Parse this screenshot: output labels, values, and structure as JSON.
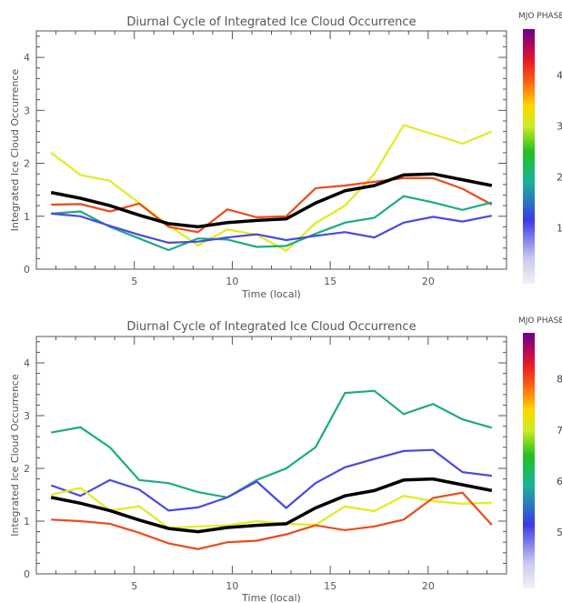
{
  "chart_data": [
    {
      "type": "line",
      "title": "Diurnal Cycle of Integrated Ice Cloud Occurrence",
      "xlabel": "Time (local)",
      "ylabel": "Integrated Ice Cloud Occurrence",
      "xlim": [
        0,
        24
      ],
      "ylim": [
        0,
        4.5
      ],
      "x_ticks": [
        5,
        10,
        15,
        20
      ],
      "y_ticks": [
        0,
        1,
        2,
        3,
        4
      ],
      "x": [
        0.75,
        2.25,
        3.75,
        5.25,
        6.75,
        8.25,
        9.75,
        11.25,
        12.75,
        14.25,
        15.75,
        17.25,
        18.75,
        20.25,
        21.75,
        23.25
      ],
      "colorbar": {
        "title": "MJO PHASE",
        "tick_labels": [
          "4",
          "3",
          "2",
          "1"
        ]
      },
      "series": [
        {
          "color": "#e0ec1c",
          "values": [
            2.2,
            1.78,
            1.67,
            1.25,
            0.83,
            0.45,
            0.75,
            0.65,
            0.35,
            0.87,
            1.2,
            1.8,
            2.72,
            2.55,
            2.37,
            2.6
          ]
        },
        {
          "color": "#ee4a18",
          "values": [
            1.22,
            1.23,
            1.09,
            1.24,
            0.8,
            0.7,
            1.13,
            0.98,
            1.0,
            1.53,
            1.58,
            1.65,
            1.72,
            1.72,
            1.52,
            1.22
          ]
        },
        {
          "color": "#1bab84",
          "values": [
            1.05,
            1.09,
            0.8,
            0.58,
            0.36,
            0.58,
            0.56,
            0.42,
            0.44,
            0.67,
            0.88,
            0.97,
            1.38,
            1.26,
            1.12,
            1.26
          ]
        },
        {
          "color": "#4b48e2",
          "values": [
            1.05,
            1.0,
            0.82,
            0.65,
            0.5,
            0.52,
            0.6,
            0.66,
            0.55,
            0.63,
            0.7,
            0.6,
            0.88,
            0.99,
            0.9,
            1.01
          ]
        },
        {
          "color": "#000000",
          "values": [
            1.45,
            1.34,
            1.2,
            1.02,
            0.86,
            0.8,
            0.88,
            0.92,
            0.95,
            1.25,
            1.48,
            1.58,
            1.78,
            1.8,
            1.69,
            1.58
          ]
        }
      ]
    },
    {
      "type": "line",
      "title": "Diurnal Cycle of Integrated Ice Cloud Occurrence",
      "xlabel": "Time (local)",
      "ylabel": "Integrated Ice Cloud Occurrence",
      "xlim": [
        0,
        24
      ],
      "ylim": [
        0,
        4.5
      ],
      "x_ticks": [
        5,
        10,
        15,
        20
      ],
      "y_ticks": [
        0,
        1,
        2,
        3,
        4
      ],
      "x": [
        0.75,
        2.25,
        3.75,
        5.25,
        6.75,
        8.25,
        9.75,
        11.25,
        12.75,
        14.25,
        15.75,
        17.25,
        18.75,
        20.25,
        21.75,
        23.25
      ],
      "colorbar": {
        "title": "MJO PHASE",
        "tick_labels": [
          "8",
          "7",
          "6",
          "5"
        ]
      },
      "series": [
        {
          "color": "#1bab84",
          "values": [
            2.68,
            2.78,
            2.4,
            1.78,
            1.72,
            1.55,
            1.45,
            1.78,
            2.0,
            2.4,
            3.43,
            3.47,
            3.03,
            3.22,
            2.93,
            2.77
          ]
        },
        {
          "color": "#4b48e2",
          "values": [
            1.68,
            1.48,
            1.78,
            1.6,
            1.2,
            1.26,
            1.45,
            1.75,
            1.25,
            1.72,
            2.02,
            2.18,
            2.33,
            2.35,
            1.93,
            1.86
          ]
        },
        {
          "color": "#e0ec1c",
          "values": [
            1.5,
            1.63,
            1.2,
            1.28,
            0.87,
            0.9,
            0.92,
            1.0,
            0.95,
            0.93,
            1.28,
            1.19,
            1.48,
            1.38,
            1.33,
            1.35
          ]
        },
        {
          "color": "#ee4a18",
          "values": [
            1.03,
            1.0,
            0.95,
            0.78,
            0.58,
            0.47,
            0.6,
            0.63,
            0.75,
            0.92,
            0.83,
            0.9,
            1.03,
            1.44,
            1.54,
            0.93
          ]
        },
        {
          "color": "#000000",
          "values": [
            1.45,
            1.34,
            1.2,
            1.02,
            0.86,
            0.8,
            0.88,
            0.92,
            0.95,
            1.25,
            1.48,
            1.58,
            1.78,
            1.8,
            1.69,
            1.58
          ]
        }
      ]
    }
  ]
}
